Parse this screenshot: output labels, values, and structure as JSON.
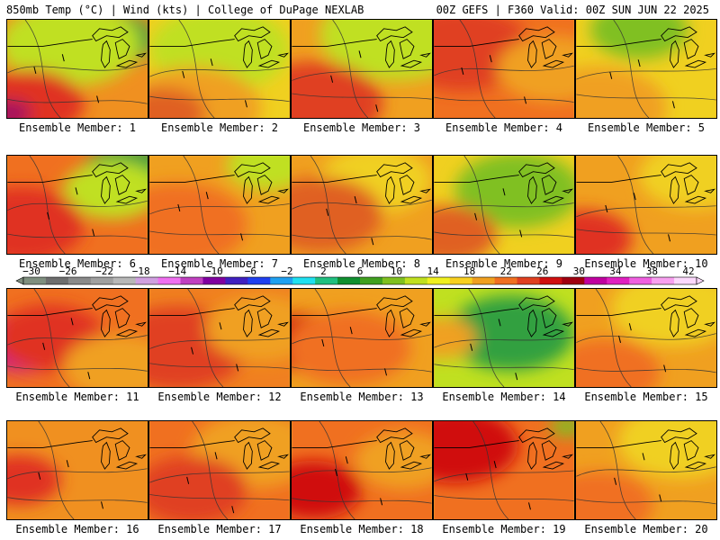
{
  "header": {
    "left": "850mb Temp (°C) | Wind (kts) | College of DuPage NEXLAB",
    "right": "00Z GEFS | F360 Valid: 00Z SUN JUN 22 2025"
  },
  "colorbar": {
    "labels": [
      "−30",
      "−26",
      "−22",
      "−18",
      "−14",
      "−10",
      "−6",
      "−2",
      "2",
      "6",
      "10",
      "14",
      "18",
      "22",
      "26",
      "30",
      "34",
      "38",
      "42"
    ],
    "colors": [
      "#7f8f7f",
      "#6e6e6e",
      "#8a8a8a",
      "#a0a0a0",
      "#b8b8b8",
      "#d0a0e0",
      "#f070f0",
      "#c040c0",
      "#8000a0",
      "#4020c0",
      "#2040f0",
      "#20a0f0",
      "#20e0f0",
      "#20c080",
      "#109030",
      "#40a020",
      "#80c020",
      "#c0e020",
      "#f0f020",
      "#f8d020",
      "#f0a020",
      "#f07020",
      "#e04020",
      "#d01010",
      "#a00010",
      "#c000a0",
      "#e020c0",
      "#f060e0",
      "#f8a0f0",
      "#fcd8fc"
    ]
  },
  "panels": [
    {
      "label": "Ensemble Member: 1",
      "base": "#f09020",
      "accents": [
        [
          "#30a040",
          0.7,
          0.2,
          0.35
        ],
        [
          "#c0e020",
          0.45,
          0.25,
          0.5
        ],
        [
          "#e03020",
          0.15,
          0.85,
          0.4
        ],
        [
          "#a01060",
          0.02,
          0.95,
          0.15
        ]
      ]
    },
    {
      "label": "Ensemble Member: 2",
      "base": "#f0d020",
      "accents": [
        [
          "#c0e020",
          0.5,
          0.3,
          0.5
        ],
        [
          "#f0a020",
          0.3,
          0.9,
          0.5
        ],
        [
          "#e06020",
          0.1,
          0.95,
          0.3
        ]
      ]
    },
    {
      "label": "Ensemble Member: 3",
      "base": "#f0a020",
      "accents": [
        [
          "#c0e020",
          0.75,
          0.15,
          0.55
        ],
        [
          "#e04020",
          0.15,
          0.85,
          0.5
        ]
      ]
    },
    {
      "label": "Ensemble Member: 4",
      "base": "#f07020",
      "accents": [
        [
          "#e04020",
          0.2,
          0.3,
          0.5
        ],
        [
          "#f0a020",
          0.85,
          0.5,
          0.4
        ]
      ]
    },
    {
      "label": "Ensemble Member: 5",
      "base": "#f0d020",
      "accents": [
        [
          "#80c020",
          0.45,
          0.1,
          0.35
        ],
        [
          "#f0a020",
          0.15,
          0.9,
          0.5
        ]
      ]
    },
    {
      "label": "Ensemble Member: 6",
      "base": "#f07020",
      "accents": [
        [
          "#30a040",
          0.85,
          0.15,
          0.3
        ],
        [
          "#c0e020",
          0.75,
          0.35,
          0.35
        ],
        [
          "#e03020",
          0.1,
          0.7,
          0.45
        ]
      ]
    },
    {
      "label": "Ensemble Member: 7",
      "base": "#f0a020",
      "accents": [
        [
          "#c0e020",
          0.85,
          0.1,
          0.3
        ],
        [
          "#f07020",
          0.2,
          0.7,
          0.5
        ]
      ]
    },
    {
      "label": "Ensemble Member: 8",
      "base": "#f0a020",
      "accents": [
        [
          "#f0d020",
          0.6,
          0.25,
          0.4
        ],
        [
          "#e06020",
          0.2,
          0.6,
          0.45
        ]
      ]
    },
    {
      "label": "Ensemble Member: 9",
      "base": "#f0d020",
      "accents": [
        [
          "#80c020",
          0.6,
          0.35,
          0.45
        ],
        [
          "#e06020",
          0.1,
          0.8,
          0.35
        ]
      ]
    },
    {
      "label": "Ensemble Member: 10",
      "base": "#f0a020",
      "accents": [
        [
          "#f0d020",
          0.85,
          0.2,
          0.4
        ],
        [
          "#e03020",
          0.05,
          0.85,
          0.35
        ]
      ]
    },
    {
      "label": "Ensemble Member: 11",
      "base": "#f07020",
      "accents": [
        [
          "#c000a0",
          0.15,
          0.55,
          0.35
        ],
        [
          "#e03020",
          0.3,
          0.5,
          0.4
        ],
        [
          "#f0a020",
          0.8,
          0.8,
          0.4
        ]
      ]
    },
    {
      "label": "Ensemble Member: 12",
      "base": "#f08020",
      "accents": [
        [
          "#e04020",
          0.2,
          0.6,
          0.5
        ],
        [
          "#f0a020",
          0.8,
          0.4,
          0.4
        ]
      ]
    },
    {
      "label": "Ensemble Member: 13",
      "base": "#f0a020",
      "accents": [
        [
          "#d01010",
          0.1,
          0.55,
          0.35
        ],
        [
          "#f07020",
          0.4,
          0.6,
          0.45
        ]
      ]
    },
    {
      "label": "Ensemble Member: 14",
      "base": "#c0e020",
      "accents": [
        [
          "#30a040",
          0.55,
          0.45,
          0.45
        ],
        [
          "#f0a020",
          0.05,
          0.5,
          0.25
        ]
      ]
    },
    {
      "label": "Ensemble Member: 15",
      "base": "#f0a020",
      "accents": [
        [
          "#f0d020",
          0.7,
          0.2,
          0.45
        ],
        [
          "#f07020",
          0.2,
          0.85,
          0.4
        ]
      ]
    },
    {
      "label": "Ensemble Member: 16",
      "base": "#f09020",
      "accents": [
        [
          "#c000a0",
          0.02,
          0.65,
          0.15
        ],
        [
          "#e03020",
          0.08,
          0.6,
          0.3
        ]
      ]
    },
    {
      "label": "Ensemble Member: 17",
      "base": "#f07020",
      "accents": [
        [
          "#f0a020",
          0.75,
          0.3,
          0.45
        ],
        [
          "#e04020",
          0.3,
          0.7,
          0.4
        ]
      ]
    },
    {
      "label": "Ensemble Member: 18",
      "base": "#f07020",
      "accents": [
        [
          "#d01010",
          0.15,
          0.7,
          0.35
        ],
        [
          "#f0a020",
          0.8,
          0.4,
          0.35
        ]
      ]
    },
    {
      "label": "Ensemble Member: 19",
      "base": "#f07020",
      "accents": [
        [
          "#d01010",
          0.15,
          0.25,
          0.45
        ],
        [
          "#80c020",
          0.95,
          0.05,
          0.12
        ]
      ]
    },
    {
      "label": "Ensemble Member: 20",
      "base": "#f0a020",
      "accents": [
        [
          "#f0d020",
          0.75,
          0.2,
          0.45
        ],
        [
          "#f07020",
          0.15,
          0.85,
          0.4
        ]
      ]
    }
  ]
}
